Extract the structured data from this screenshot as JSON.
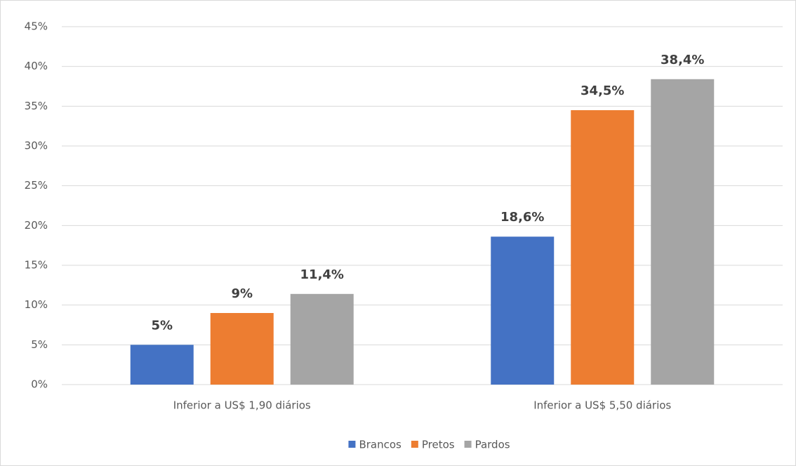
{
  "chart_data": {
    "type": "bar",
    "categories": [
      "Inferior a US$ 1,90 diários",
      "Inferior a US$ 5,50 diários"
    ],
    "series": [
      {
        "name": "Brancos",
        "color": "#4472c4",
        "values": [
          5,
          18.6
        ],
        "value_labels": [
          "5%",
          "18,6%"
        ]
      },
      {
        "name": "Pretos",
        "color": "#ed7d31",
        "values": [
          9,
          34.5
        ],
        "value_labels": [
          "9%",
          "34,5%"
        ]
      },
      {
        "name": "Pardos",
        "color": "#a5a5a5",
        "values": [
          11.4,
          38.4
        ],
        "value_labels": [
          "11,4%",
          "38,4%"
        ]
      }
    ],
    "ylim": [
      0,
      45
    ],
    "yticks": [
      {
        "value": 0,
        "label": "0%"
      },
      {
        "value": 5,
        "label": "5%"
      },
      {
        "value": 10,
        "label": "10%"
      },
      {
        "value": 15,
        "label": "15%"
      },
      {
        "value": 20,
        "label": "20%"
      },
      {
        "value": 25,
        "label": "25%"
      },
      {
        "value": 30,
        "label": "30%"
      },
      {
        "value": 35,
        "label": "35%"
      },
      {
        "value": 40,
        "label": "40%"
      },
      {
        "value": 45,
        "label": "45%"
      }
    ],
    "grid": true,
    "legend": "bottom"
  }
}
